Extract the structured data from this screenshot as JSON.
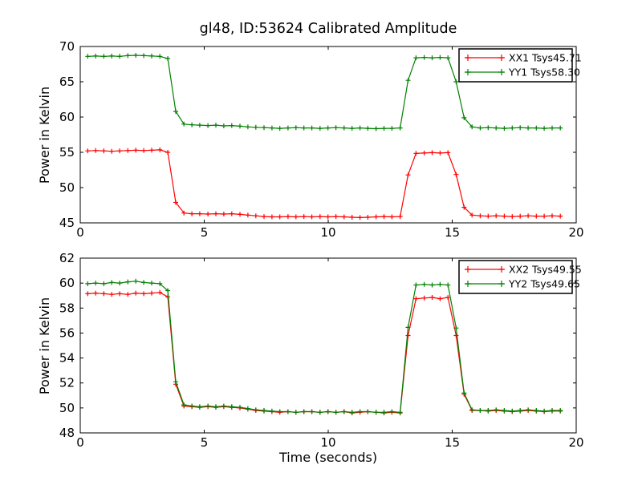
{
  "title": "gl48, ID:53624 Calibrated Amplitude",
  "colors": {
    "xx_series": "#ff0000",
    "yy_series": "#008000",
    "frame": "#000000",
    "background": "#ffffff"
  },
  "chart_data": [
    {
      "type": "line",
      "subplot": "top",
      "title": "gl48, ID:53624 Calibrated Amplitude",
      "xlabel": "",
      "ylabel": "Power in Kelvin",
      "xlim": [
        0,
        20
      ],
      "ylim": [
        45,
        70
      ],
      "xticks": [
        0,
        5,
        10,
        15,
        20
      ],
      "yticks": [
        45,
        50,
        55,
        60,
        65,
        70
      ],
      "grid": false,
      "marker": "+",
      "legend_position": "upper right",
      "x": [
        0.3,
        0.62,
        0.95,
        1.27,
        1.59,
        1.92,
        2.24,
        2.56,
        2.88,
        3.21,
        3.53,
        3.85,
        4.18,
        4.5,
        4.82,
        5.15,
        5.47,
        5.79,
        6.11,
        6.44,
        6.76,
        7.08,
        7.41,
        7.73,
        8.05,
        8.38,
        8.7,
        9.02,
        9.34,
        9.67,
        9.99,
        10.31,
        10.64,
        10.96,
        11.28,
        11.6,
        11.93,
        12.25,
        12.57,
        12.9,
        13.22,
        13.54,
        13.87,
        14.19,
        14.51,
        14.83,
        15.16,
        15.48,
        15.8,
        16.13,
        16.45,
        16.77,
        17.1,
        17.42,
        17.74,
        18.06,
        18.39,
        18.71,
        19.03,
        19.36
      ],
      "series": [
        {
          "name": "XX1 Tsys45.71",
          "color": "#ff0000",
          "values": [
            55.2,
            55.25,
            55.2,
            55.15,
            55.2,
            55.25,
            55.3,
            55.25,
            55.3,
            55.35,
            55.0,
            47.9,
            46.4,
            46.3,
            46.3,
            46.25,
            46.3,
            46.25,
            46.3,
            46.2,
            46.1,
            46.0,
            45.9,
            45.85,
            45.85,
            45.9,
            45.85,
            45.9,
            45.85,
            45.9,
            45.85,
            45.9,
            45.85,
            45.8,
            45.75,
            45.8,
            45.85,
            45.9,
            45.85,
            45.9,
            51.8,
            54.85,
            54.9,
            54.95,
            54.9,
            54.95,
            51.85,
            47.2,
            46.1,
            46.0,
            45.95,
            46.0,
            45.95,
            45.9,
            45.95,
            46.0,
            45.95,
            45.95,
            46.0,
            45.95
          ]
        },
        {
          "name": "YY1 Tsys58.30",
          "color": "#008000",
          "values": [
            68.6,
            68.65,
            68.6,
            68.65,
            68.6,
            68.7,
            68.75,
            68.7,
            68.65,
            68.6,
            68.3,
            60.8,
            59.0,
            58.9,
            58.85,
            58.8,
            58.85,
            58.75,
            58.8,
            58.7,
            58.6,
            58.55,
            58.5,
            58.45,
            58.4,
            58.45,
            58.5,
            58.45,
            58.45,
            58.4,
            58.45,
            58.5,
            58.45,
            58.4,
            58.45,
            58.4,
            58.35,
            58.4,
            58.4,
            58.45,
            65.2,
            68.4,
            68.45,
            68.4,
            68.45,
            68.4,
            65.0,
            59.9,
            58.6,
            58.45,
            58.5,
            58.45,
            58.4,
            58.45,
            58.5,
            58.45,
            58.45,
            58.4,
            58.45,
            58.45
          ]
        }
      ]
    },
    {
      "type": "line",
      "subplot": "bottom",
      "title": "",
      "xlabel": "Time (seconds)",
      "ylabel": "Power in Kelvin",
      "xlim": [
        0,
        20
      ],
      "ylim": [
        48,
        62
      ],
      "xticks": [
        0,
        5,
        10,
        15,
        20
      ],
      "yticks": [
        48,
        50,
        52,
        54,
        56,
        58,
        60,
        62
      ],
      "grid": false,
      "marker": "+",
      "legend_position": "upper right",
      "x": [
        0.3,
        0.62,
        0.95,
        1.27,
        1.59,
        1.92,
        2.24,
        2.56,
        2.88,
        3.21,
        3.53,
        3.85,
        4.18,
        4.5,
        4.82,
        5.15,
        5.47,
        5.79,
        6.11,
        6.44,
        6.76,
        7.08,
        7.41,
        7.73,
        8.05,
        8.38,
        8.7,
        9.02,
        9.34,
        9.67,
        9.99,
        10.31,
        10.64,
        10.96,
        11.28,
        11.6,
        11.93,
        12.25,
        12.57,
        12.9,
        13.22,
        13.54,
        13.87,
        14.19,
        14.51,
        14.83,
        15.16,
        15.48,
        15.8,
        16.13,
        16.45,
        16.77,
        17.1,
        17.42,
        17.74,
        18.06,
        18.39,
        18.71,
        19.03,
        19.36
      ],
      "series": [
        {
          "name": "XX2 Tsys49.55",
          "color": "#ff0000",
          "values": [
            59.15,
            59.2,
            59.15,
            59.1,
            59.15,
            59.1,
            59.2,
            59.15,
            59.2,
            59.25,
            58.9,
            51.9,
            50.15,
            50.1,
            50.05,
            50.1,
            50.05,
            50.1,
            50.05,
            50.0,
            49.9,
            49.8,
            49.75,
            49.7,
            49.65,
            49.7,
            49.65,
            49.7,
            49.7,
            49.65,
            49.7,
            49.65,
            49.7,
            49.6,
            49.65,
            49.7,
            49.65,
            49.6,
            49.65,
            49.6,
            55.8,
            58.75,
            58.8,
            58.85,
            58.75,
            58.85,
            55.8,
            51.1,
            49.8,
            49.8,
            49.75,
            49.8,
            49.75,
            49.7,
            49.75,
            49.8,
            49.75,
            49.7,
            49.75,
            49.75
          ]
        },
        {
          "name": "YY2 Tsys49.65",
          "color": "#008000",
          "values": [
            59.95,
            60.0,
            59.95,
            60.05,
            60.0,
            60.1,
            60.15,
            60.05,
            60.0,
            59.95,
            59.4,
            52.1,
            50.25,
            50.15,
            50.1,
            50.15,
            50.1,
            50.15,
            50.1,
            50.05,
            49.95,
            49.85,
            49.8,
            49.75,
            49.7,
            49.7,
            49.65,
            49.7,
            49.7,
            49.65,
            49.7,
            49.65,
            49.7,
            49.65,
            49.7,
            49.7,
            49.65,
            49.65,
            49.7,
            49.65,
            56.45,
            59.85,
            59.9,
            59.85,
            59.9,
            59.85,
            56.4,
            51.2,
            49.85,
            49.8,
            49.8,
            49.85,
            49.8,
            49.75,
            49.8,
            49.85,
            49.8,
            49.75,
            49.8,
            49.8
          ]
        }
      ]
    }
  ]
}
